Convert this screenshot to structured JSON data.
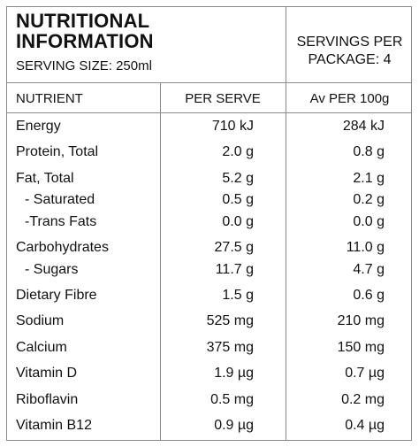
{
  "title_line1": "NUTRITIONAL",
  "title_line2": "INFORMATION",
  "serving_size": "SERVING SIZE: 250ml",
  "servings_per_package_line1": "SERVINGS PER",
  "servings_per_package_line2": "PACKAGE: 4",
  "headers": {
    "nutrient": "NUTRIENT",
    "per_serve": "PER SERVE",
    "per_100g": "Av PER 100g"
  },
  "rows": [
    {
      "name": "Energy",
      "per_serve": "710 kJ",
      "per_100g": "284 kJ"
    },
    {
      "name": "Protein, Total",
      "per_serve": "2.0 g",
      "per_100g": "0.8 g"
    },
    {
      "name": "Fat, Total",
      "per_serve": "5.2 g",
      "per_100g": "2.1 g"
    },
    {
      "name": "- Saturated",
      "per_serve": "0.5 g",
      "per_100g": "0.2 g"
    },
    {
      "name": "-Trans Fats",
      "per_serve": "0.0 g",
      "per_100g": "0.0 g"
    },
    {
      "name": "Carbohydrates",
      "per_serve": "27.5 g",
      "per_100g": "11.0 g"
    },
    {
      "name": "- Sugars",
      "per_serve": "11.7 g",
      "per_100g": "4.7 g"
    },
    {
      "name": "Dietary Fibre",
      "per_serve": "1.5 g",
      "per_100g": "0.6 g"
    },
    {
      "name": "Sodium",
      "per_serve": "525 mg",
      "per_100g": "210 mg"
    },
    {
      "name": "Calcium",
      "per_serve": "375 mg",
      "per_100g": "150 mg"
    },
    {
      "name": "Vitamin D",
      "per_serve": "1.9 µg",
      "per_100g": "0.7 µg"
    },
    {
      "name": "Riboflavin",
      "per_serve": "0.5 mg",
      "per_100g": "0.2 mg"
    },
    {
      "name": "Vitamin B12",
      "per_serve": "0.9 µg",
      "per_100g": "0.4 µg"
    }
  ]
}
